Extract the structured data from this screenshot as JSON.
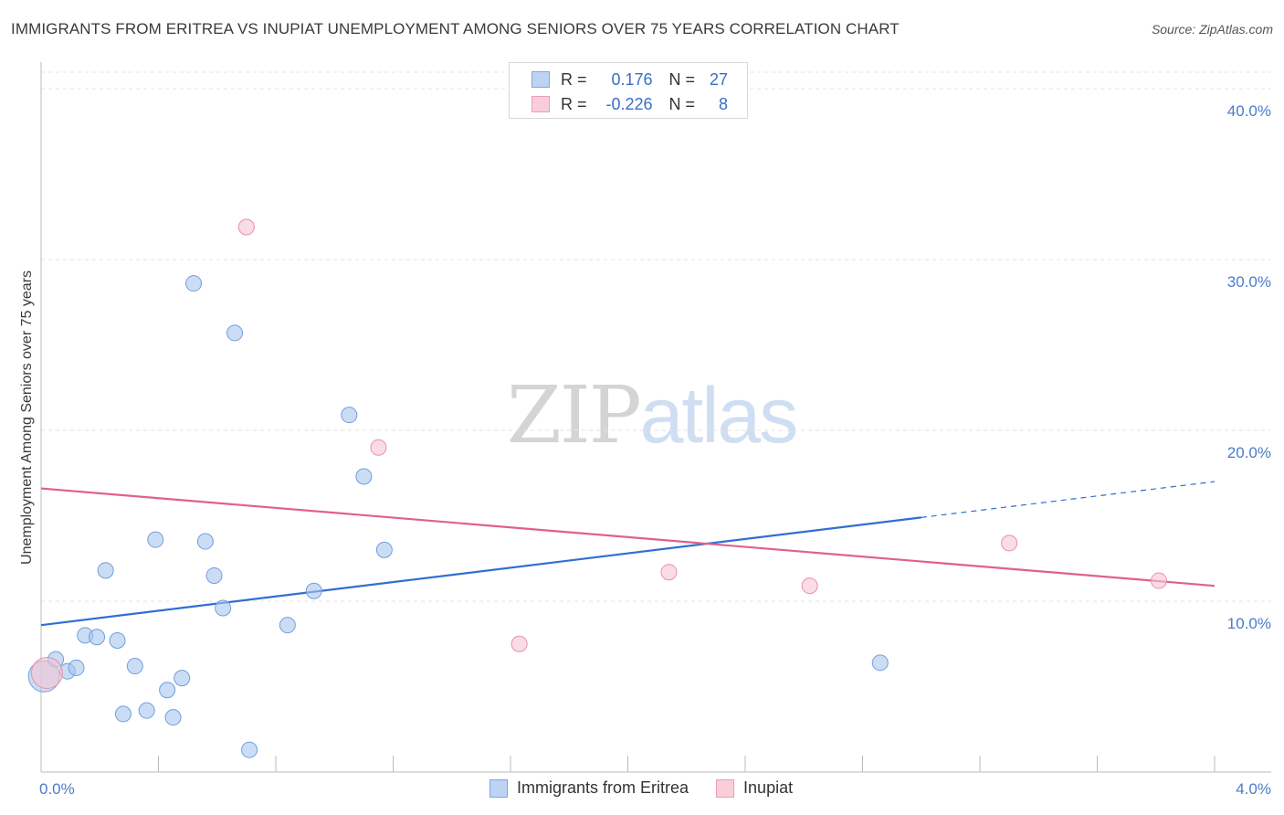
{
  "title": "IMMIGRANTS FROM ERITREA VS INUPIAT UNEMPLOYMENT AMONG SENIORS OVER 75 YEARS CORRELATION CHART",
  "source": "Source: ZipAtlas.com",
  "watermark": {
    "zip": "ZIP",
    "atlas": "atlas"
  },
  "legend": {
    "rows": [
      {
        "r_label": "R =",
        "r_value": "0.176",
        "n_label": "N =",
        "n_value": "27"
      },
      {
        "r_label": "R =",
        "r_value": "-0.226",
        "n_label": "N =",
        "n_value": "8"
      }
    ]
  },
  "chart_data": {
    "type": "scatter",
    "title": "IMMIGRANTS FROM ERITREA VS INUPIAT UNEMPLOYMENT AMONG SENIORS OVER 75 YEARS CORRELATION CHART",
    "xlabel": "",
    "ylabel": "Unemployment Among Seniors over 75 years",
    "xlim": [
      0,
      4.0
    ],
    "ylim": [
      0,
      40.0
    ],
    "x_tick_labels": [
      "0.0%",
      "4.0%"
    ],
    "y_ticks": [
      10,
      20,
      30,
      40
    ],
    "y_tick_labels": [
      "10.0%",
      "20.0%",
      "30.0%",
      "40.0%"
    ],
    "grid": true,
    "series": [
      {
        "name": "Immigrants from Eritrea",
        "color": "#a9c6ef",
        "stroke": "#6f9fdc",
        "trend_color": "#2f6fd0",
        "trend": {
          "x0": 0.0,
          "y0": 8.6,
          "x1": 3.0,
          "y1": 14.9,
          "dash_x1": 4.0,
          "dash_y1": 17.0
        },
        "points": [
          {
            "x": 0.01,
            "y": 5.6,
            "big": true
          },
          {
            "x": 0.05,
            "y": 6.6
          },
          {
            "x": 0.09,
            "y": 5.9
          },
          {
            "x": 0.12,
            "y": 6.1
          },
          {
            "x": 0.15,
            "y": 8.0
          },
          {
            "x": 0.19,
            "y": 7.9
          },
          {
            "x": 0.22,
            "y": 11.8
          },
          {
            "x": 0.26,
            "y": 7.7
          },
          {
            "x": 0.28,
            "y": 3.4
          },
          {
            "x": 0.32,
            "y": 6.2
          },
          {
            "x": 0.36,
            "y": 3.6
          },
          {
            "x": 0.39,
            "y": 13.6
          },
          {
            "x": 0.43,
            "y": 4.8
          },
          {
            "x": 0.45,
            "y": 3.2
          },
          {
            "x": 0.48,
            "y": 5.5
          },
          {
            "x": 0.52,
            "y": 28.6
          },
          {
            "x": 0.56,
            "y": 13.5
          },
          {
            "x": 0.59,
            "y": 11.5
          },
          {
            "x": 0.62,
            "y": 9.6
          },
          {
            "x": 0.66,
            "y": 25.7
          },
          {
            "x": 0.71,
            "y": 1.3
          },
          {
            "x": 0.84,
            "y": 8.6
          },
          {
            "x": 0.93,
            "y": 10.6
          },
          {
            "x": 1.05,
            "y": 20.9
          },
          {
            "x": 1.1,
            "y": 17.3
          },
          {
            "x": 1.17,
            "y": 13.0
          },
          {
            "x": 2.86,
            "y": 6.4
          }
        ]
      },
      {
        "name": "Inupiat",
        "color": "#f7c5d4",
        "stroke": "#e890ac",
        "trend_color": "#e0608c",
        "trend": {
          "x0": 0.0,
          "y0": 16.6,
          "x1": 4.0,
          "y1": 10.9
        },
        "points": [
          {
            "x": 0.02,
            "y": 5.8,
            "big": true
          },
          {
            "x": 0.7,
            "y": 31.9
          },
          {
            "x": 1.15,
            "y": 19.0
          },
          {
            "x": 1.63,
            "y": 7.5
          },
          {
            "x": 2.14,
            "y": 11.7
          },
          {
            "x": 2.62,
            "y": 10.9
          },
          {
            "x": 3.3,
            "y": 13.4
          },
          {
            "x": 3.81,
            "y": 11.2
          }
        ]
      }
    ]
  }
}
